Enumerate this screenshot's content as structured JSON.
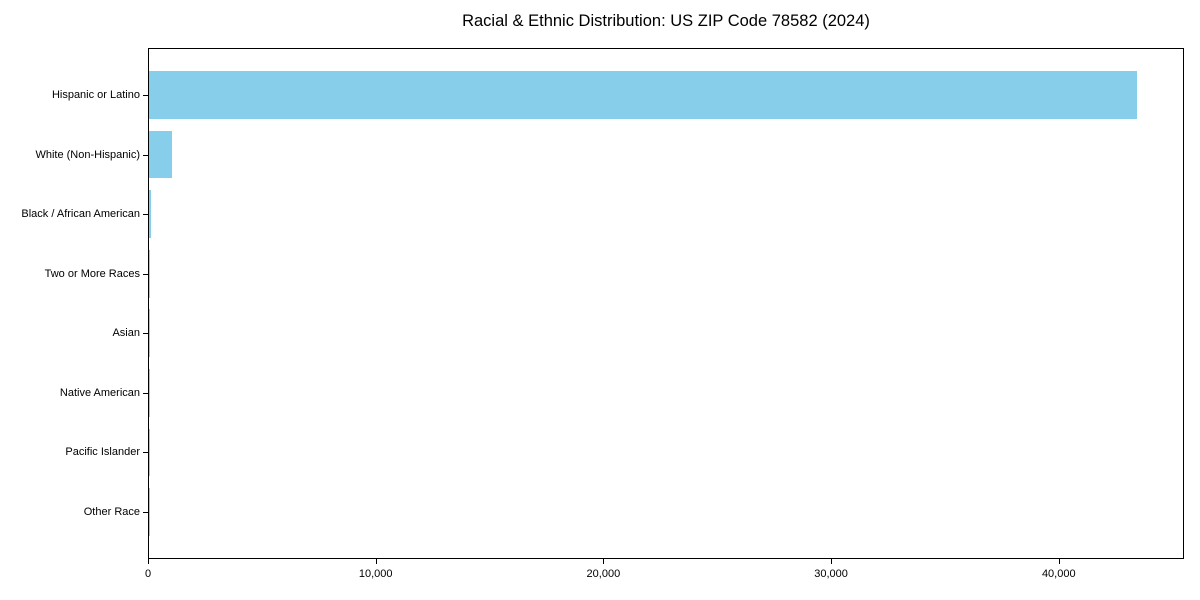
{
  "figure": {
    "background": "#ffffff"
  },
  "chart_data": {
    "type": "bar",
    "orientation": "horizontal",
    "title": "Racial & Ethnic Distribution: US ZIP Code 78582 (2024)",
    "categories": [
      "Hispanic or Latino",
      "White (Non-Hispanic)",
      "Black / African American",
      "Two or More Races",
      "Asian",
      "Native American",
      "Pacific Islander",
      "Other Race"
    ],
    "values": [
      43400,
      1000,
      80,
      60,
      35,
      20,
      5,
      5
    ],
    "xlabel": "",
    "ylabel": "",
    "xlim": [
      0,
      45500
    ],
    "xticks": [
      0,
      10000,
      20000,
      30000,
      40000
    ],
    "xtick_labels": [
      "0",
      "10,000",
      "20,000",
      "30,000",
      "40,000"
    ],
    "bar_color": "#87ceeb",
    "axis_color": "#000000",
    "text_color": "#000000",
    "grid": false,
    "legend_position": "none"
  }
}
